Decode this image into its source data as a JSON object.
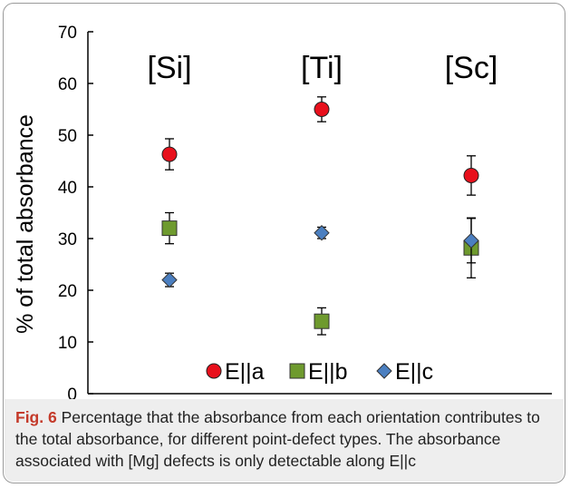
{
  "chart_data": {
    "type": "scatter",
    "categories": [
      "[Si]",
      "[Ti]",
      "[Sc]"
    ],
    "ylabel": "% of total absorbance",
    "ylim": [
      0,
      70
    ],
    "yticks": [
      0,
      10,
      20,
      30,
      40,
      50,
      60,
      70
    ],
    "grid": false,
    "legend_position": "bottom",
    "series": [
      {
        "name": "E||a",
        "marker": "circle",
        "color": "#e8101c",
        "values": [
          46.3,
          55.0,
          42.2
        ],
        "errors": [
          3.0,
          2.4,
          3.8
        ]
      },
      {
        "name": "E||b",
        "marker": "square",
        "color": "#6e9a2e",
        "values": [
          32.0,
          14.0,
          28.2
        ],
        "errors": [
          3.0,
          2.6,
          5.8
        ]
      },
      {
        "name": "E||c",
        "marker": "diamond",
        "color": "#4b7fc0",
        "values": [
          22.0,
          31.1,
          29.6
        ],
        "errors": [
          1.3,
          1.1,
          4.3
        ]
      }
    ]
  },
  "caption": {
    "label": "Fig. 6",
    "text": " Percentage that the absorbance from each orientation contributes to the total absorbance, for different point-defect types. The absorbance associated with [Mg] defects is only detectable along E||c"
  }
}
